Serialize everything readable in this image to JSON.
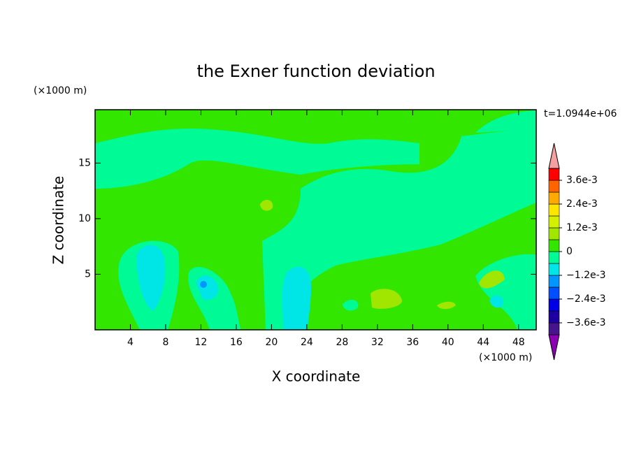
{
  "chart_data": {
    "type": "contour",
    "title": "the Exner function deviation",
    "x_label": "X coordinate",
    "y_label": "Z coordinate",
    "x_unit": "(×1000 m)",
    "y_unit": "(×1000 m)",
    "annotation": "t=1.0944e+06",
    "xlim": [
      0,
      50
    ],
    "xticks": [
      4,
      8,
      12,
      16,
      20,
      24,
      28,
      32,
      36,
      40,
      44,
      48
    ],
    "ylim": [
      0,
      19.8
    ],
    "yticks": [
      5,
      10,
      15
    ],
    "colorbar": {
      "levels": [
        -0.0042,
        -0.0036,
        -0.003,
        -0.0024,
        -0.0018,
        -0.0012,
        -0.0006,
        0,
        0.0006,
        0.0012,
        0.0018,
        0.0024,
        0.003,
        0.0036,
        0.0042
      ],
      "colors": [
        "#8c00b4",
        "#46148c",
        "#1e00a0",
        "#0000e6",
        "#0050ff",
        "#0096ff",
        "#00e6e6",
        "#00fa96",
        "#32e600",
        "#a0e600",
        "#d2f000",
        "#ffe600",
        "#ffaa00",
        "#ff6400",
        "#ff0000",
        "#f5a0a0"
      ],
      "ticks": [
        {
          "value": 0.0036,
          "label": "3.6e-3"
        },
        {
          "value": 0.0024,
          "label": "2.4e-3"
        },
        {
          "value": 0.0012,
          "label": "1.2e-3"
        },
        0,
        {
          "value": -0.0012,
          "label": "−1.2e-3"
        },
        {
          "value": -0.0024,
          "label": "−2.4e-3"
        },
        {
          "value": -0.0036,
          "label": "−3.6e-3"
        }
      ]
    }
  }
}
